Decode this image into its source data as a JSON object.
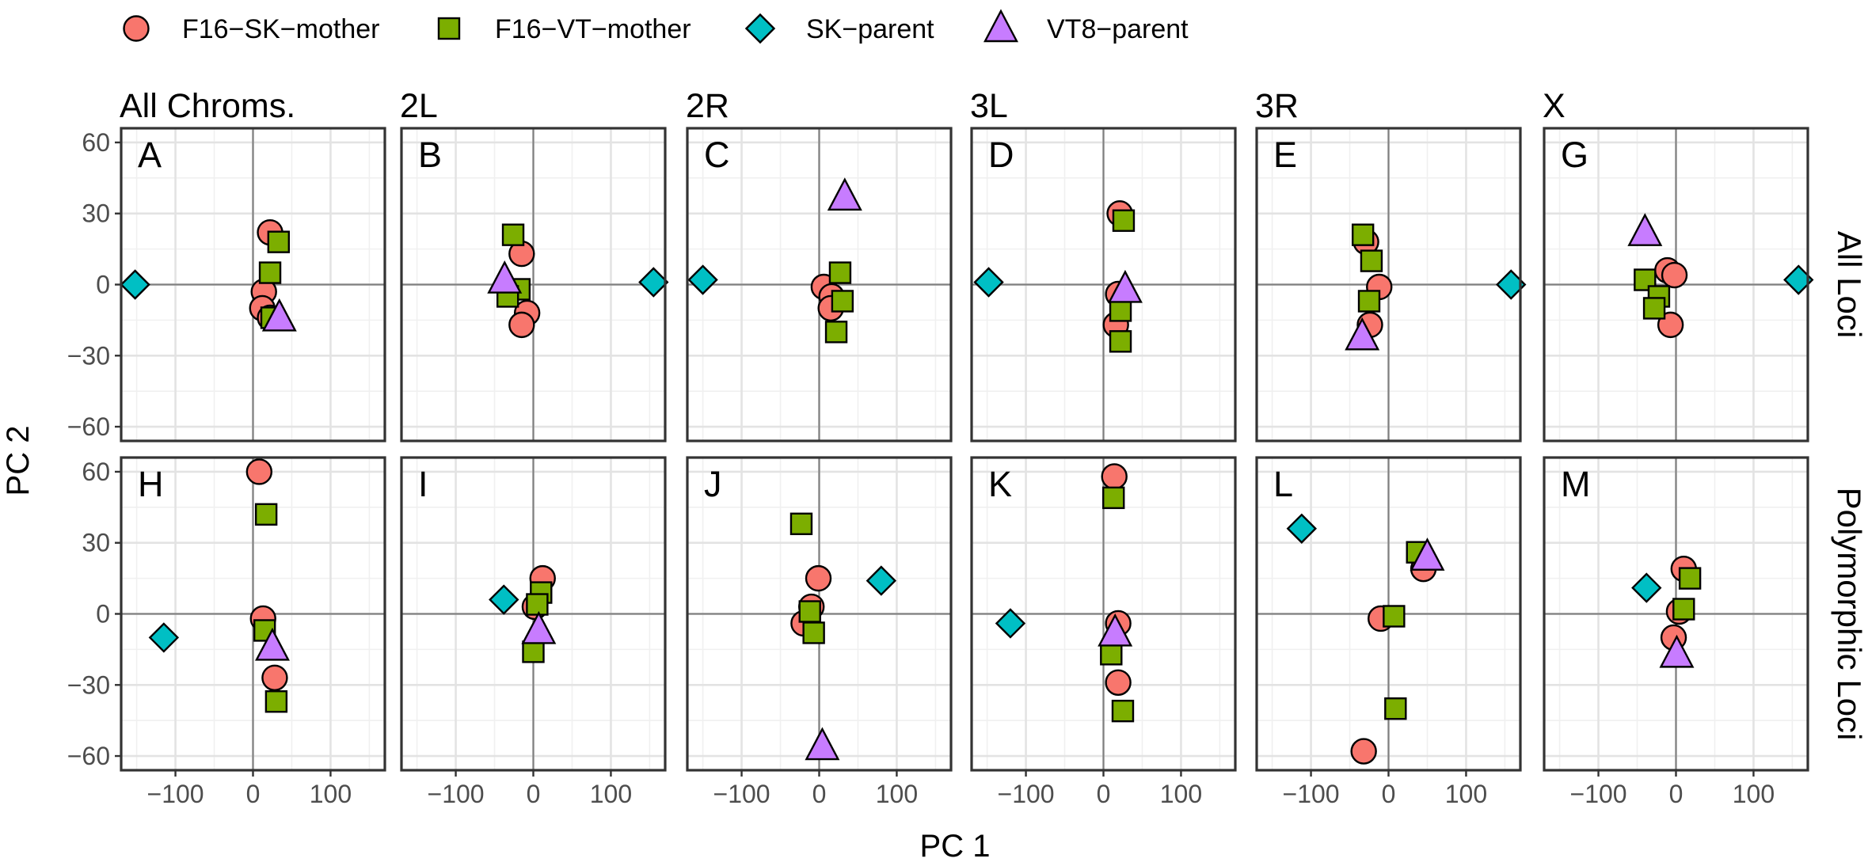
{
  "chart_data": {
    "type": "scatter",
    "xlabel": "PC 1",
    "ylabel": "PC 2",
    "xlim": [
      -170,
      170
    ],
    "ylim": [
      -66,
      66
    ],
    "x_ticks": [
      -100,
      0,
      100
    ],
    "y_ticks": [
      -60,
      -30,
      0,
      30,
      60
    ],
    "grid": true,
    "legend_position": "top-left",
    "legend": [
      {
        "name": "F16−SK−mother",
        "shape": "circle",
        "color": "#F8766D"
      },
      {
        "name": "F16−VT−mother",
        "shape": "square",
        "color": "#7CAE00"
      },
      {
        "name": "SK−parent",
        "shape": "diamond",
        "color": "#00BFC4"
      },
      {
        "name": "VT8−parent",
        "shape": "triangle",
        "color": "#C77CFF"
      }
    ],
    "columns": [
      "All Chroms.",
      "2L",
      "2R",
      "3L",
      "3R",
      "X"
    ],
    "rows": [
      "All Loci",
      "Polymorphic Loci"
    ],
    "panels": [
      {
        "letter": "A",
        "row": 0,
        "col": 0,
        "points": [
          {
            "s": 0,
            "x": 22,
            "y": 22
          },
          {
            "s": 0,
            "x": 14,
            "y": -3
          },
          {
            "s": 0,
            "x": 12,
            "y": -10
          },
          {
            "s": 0,
            "x": 22,
            "y": -14
          },
          {
            "s": 1,
            "x": 33,
            "y": 18
          },
          {
            "s": 1,
            "x": 22,
            "y": 5
          },
          {
            "s": 1,
            "x": 24,
            "y": -14
          },
          {
            "s": 2,
            "x": -152,
            "y": 0
          },
          {
            "s": 3,
            "x": 34,
            "y": -14
          }
        ]
      },
      {
        "letter": "B",
        "row": 0,
        "col": 1,
        "points": [
          {
            "s": 0,
            "x": -15,
            "y": 13
          },
          {
            "s": 0,
            "x": -8,
            "y": -12
          },
          {
            "s": 0,
            "x": -15,
            "y": -17
          },
          {
            "s": 1,
            "x": -26,
            "y": 21
          },
          {
            "s": 1,
            "x": -18,
            "y": -2
          },
          {
            "s": 1,
            "x": -33,
            "y": -5
          },
          {
            "s": 2,
            "x": 155,
            "y": 1
          },
          {
            "s": 3,
            "x": -37,
            "y": 2
          }
        ]
      },
      {
        "letter": "C",
        "row": 0,
        "col": 2,
        "points": [
          {
            "s": 0,
            "x": 6,
            "y": -1
          },
          {
            "s": 0,
            "x": 16,
            "y": -5
          },
          {
            "s": 0,
            "x": 15,
            "y": -10
          },
          {
            "s": 1,
            "x": 27,
            "y": 5
          },
          {
            "s": 1,
            "x": 30,
            "y": -7
          },
          {
            "s": 1,
            "x": 22,
            "y": -20
          },
          {
            "s": 2,
            "x": -150,
            "y": 2
          },
          {
            "s": 3,
            "x": 33,
            "y": 37
          }
        ]
      },
      {
        "letter": "D",
        "row": 0,
        "col": 3,
        "points": [
          {
            "s": 0,
            "x": 21,
            "y": 30
          },
          {
            "s": 0,
            "x": 19,
            "y": -4
          },
          {
            "s": 0,
            "x": 16,
            "y": -17
          },
          {
            "s": 1,
            "x": 26,
            "y": 27
          },
          {
            "s": 1,
            "x": 22,
            "y": -11
          },
          {
            "s": 1,
            "x": 22,
            "y": -24
          },
          {
            "s": 2,
            "x": -148,
            "y": 1
          },
          {
            "s": 3,
            "x": 28,
            "y": -2
          }
        ]
      },
      {
        "letter": "E",
        "row": 0,
        "col": 4,
        "points": [
          {
            "s": 0,
            "x": -29,
            "y": 18
          },
          {
            "s": 0,
            "x": -12,
            "y": -1
          },
          {
            "s": 0,
            "x": -24,
            "y": -17
          },
          {
            "s": 1,
            "x": -33,
            "y": 21
          },
          {
            "s": 1,
            "x": -22,
            "y": 10
          },
          {
            "s": 1,
            "x": -25,
            "y": -7
          },
          {
            "s": 2,
            "x": 158,
            "y": 0
          },
          {
            "s": 3,
            "x": -34,
            "y": -22
          }
        ]
      },
      {
        "letter": "G",
        "row": 0,
        "col": 5,
        "points": [
          {
            "s": 0,
            "x": -11,
            "y": 6
          },
          {
            "s": 0,
            "x": -2,
            "y": 4
          },
          {
            "s": 0,
            "x": -7,
            "y": -17
          },
          {
            "s": 1,
            "x": -40,
            "y": 2
          },
          {
            "s": 1,
            "x": -22,
            "y": -5
          },
          {
            "s": 1,
            "x": -28,
            "y": -10
          },
          {
            "s": 2,
            "x": 158,
            "y": 2
          },
          {
            "s": 3,
            "x": -40,
            "y": 22
          }
        ]
      },
      {
        "letter": "H",
        "row": 1,
        "col": 0,
        "points": [
          {
            "s": 0,
            "x": 8,
            "y": 60
          },
          {
            "s": 0,
            "x": 13,
            "y": -2
          },
          {
            "s": 0,
            "x": 28,
            "y": -27
          },
          {
            "s": 1,
            "x": 17,
            "y": 42
          },
          {
            "s": 1,
            "x": 15,
            "y": -7
          },
          {
            "s": 1,
            "x": 30,
            "y": -37
          },
          {
            "s": 2,
            "x": -115,
            "y": -10
          },
          {
            "s": 3,
            "x": 25,
            "y": -14
          }
        ]
      },
      {
        "letter": "I",
        "row": 1,
        "col": 1,
        "points": [
          {
            "s": 0,
            "x": 12,
            "y": 15
          },
          {
            "s": 0,
            "x": 2,
            "y": 3
          },
          {
            "s": 1,
            "x": 10,
            "y": 9
          },
          {
            "s": 1,
            "x": 5,
            "y": 4
          },
          {
            "s": 1,
            "x": 0,
            "y": -16
          },
          {
            "s": 2,
            "x": -38,
            "y": 6
          },
          {
            "s": 3,
            "x": 7,
            "y": -7
          }
        ]
      },
      {
        "letter": "J",
        "row": 1,
        "col": 2,
        "points": [
          {
            "s": 0,
            "x": -1,
            "y": 15
          },
          {
            "s": 0,
            "x": -10,
            "y": 3
          },
          {
            "s": 0,
            "x": -20,
            "y": -4
          },
          {
            "s": 1,
            "x": -23,
            "y": 38
          },
          {
            "s": 1,
            "x": -12,
            "y": 1
          },
          {
            "s": 1,
            "x": -7,
            "y": -8
          },
          {
            "s": 2,
            "x": 80,
            "y": 14
          },
          {
            "s": 3,
            "x": 4,
            "y": -56
          }
        ]
      },
      {
        "letter": "K",
        "row": 1,
        "col": 3,
        "points": [
          {
            "s": 0,
            "x": 14,
            "y": 58
          },
          {
            "s": 0,
            "x": 19,
            "y": -4
          },
          {
            "s": 0,
            "x": 19,
            "y": -29
          },
          {
            "s": 1,
            "x": 13,
            "y": 49
          },
          {
            "s": 1,
            "x": 10,
            "y": -17
          },
          {
            "s": 1,
            "x": 25,
            "y": -41
          },
          {
            "s": 2,
            "x": -120,
            "y": -4
          },
          {
            "s": 3,
            "x": 15,
            "y": -8
          }
        ]
      },
      {
        "letter": "L",
        "row": 1,
        "col": 4,
        "points": [
          {
            "s": 0,
            "x": 45,
            "y": 19
          },
          {
            "s": 0,
            "x": -10,
            "y": -2
          },
          {
            "s": 0,
            "x": -32,
            "y": -58
          },
          {
            "s": 1,
            "x": 37,
            "y": 26
          },
          {
            "s": 1,
            "x": 7,
            "y": -1
          },
          {
            "s": 1,
            "x": 9,
            "y": -40
          },
          {
            "s": 2,
            "x": -112,
            "y": 36
          },
          {
            "s": 3,
            "x": 50,
            "y": 24
          }
        ]
      },
      {
        "letter": "M",
        "row": 1,
        "col": 5,
        "points": [
          {
            "s": 0,
            "x": 10,
            "y": 19
          },
          {
            "s": 0,
            "x": 4,
            "y": 1
          },
          {
            "s": 0,
            "x": -3,
            "y": -10
          },
          {
            "s": 1,
            "x": 18,
            "y": 15
          },
          {
            "s": 1,
            "x": 10,
            "y": 2
          },
          {
            "s": 2,
            "x": -38,
            "y": 11
          },
          {
            "s": 3,
            "x": 1,
            "y": -17
          }
        ]
      }
    ]
  }
}
